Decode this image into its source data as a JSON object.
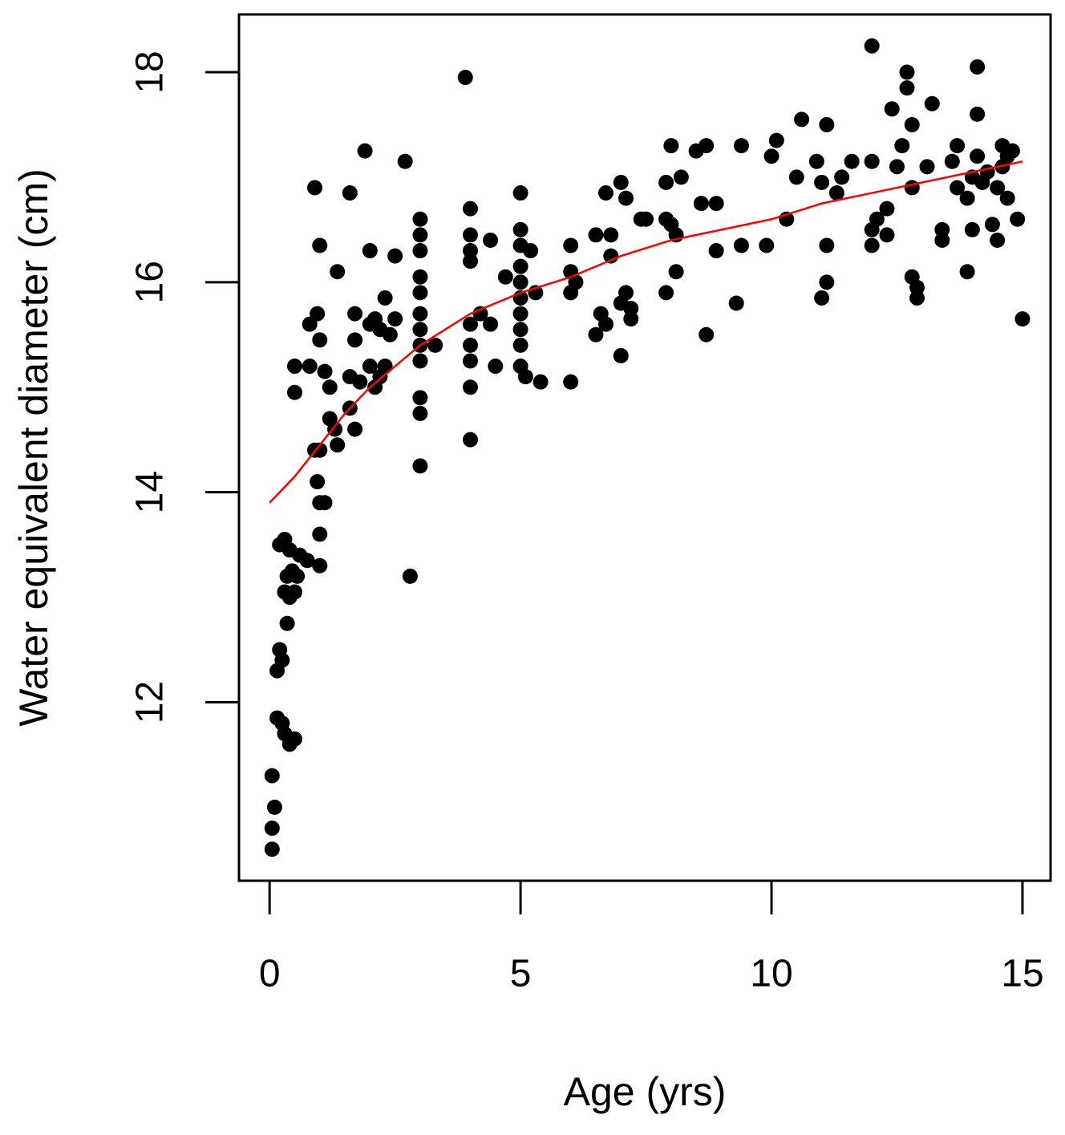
{
  "chart_data": {
    "type": "scatter",
    "x_label": "Age (yrs)",
    "y_label": "Water equivalent diameter (cm)",
    "xlim": [
      -0.61,
      15.56
    ],
    "ylim": [
      10.3,
      18.55
    ],
    "xticks": [
      0,
      5,
      10,
      15
    ],
    "yticks": [
      12,
      14,
      16,
      18
    ],
    "series": [
      {
        "mode": "markers",
        "color": "#000000",
        "x": [
          0.05,
          0.05,
          0.1,
          0.05,
          0.15,
          0.25,
          0.3,
          0.4,
          0.5,
          0.15,
          0.2,
          0.25,
          0.35,
          0.3,
          0.4,
          0.5,
          0.35,
          0.45,
          0.55,
          0.2,
          0.3,
          0.4,
          0.6,
          0.75,
          0.9,
          1.0,
          0.95,
          1.0,
          1.1,
          1.0,
          1.0,
          0.8,
          0.95,
          1.0,
          0.9,
          1.0,
          1.1,
          1.2,
          1.2,
          1.3,
          1.35,
          1.35,
          0.8,
          0.5,
          0.5,
          1.6,
          1.9,
          1.7,
          1.7,
          1.6,
          1.6,
          1.7,
          1.8,
          2.0,
          2.0,
          2.0,
          2.1,
          2.2,
          2.3,
          2.3,
          2.4,
          2.5,
          2.5,
          2.7,
          2.8,
          2.1,
          2.2,
          3,
          3,
          3,
          3,
          3,
          3,
          3,
          3,
          3,
          3,
          3,
          3,
          3.3,
          3.9,
          4,
          4,
          4,
          4,
          4,
          4,
          4,
          4,
          4,
          4.2,
          4.4,
          4.4,
          4.5,
          4.7,
          5,
          5,
          5,
          5,
          5,
          5,
          5,
          5,
          5,
          5,
          5.1,
          5.2,
          5.3,
          5.4,
          6,
          6,
          6,
          6,
          6.1,
          6.5,
          6.6,
          6.5,
          6.7,
          6.8,
          6.7,
          6.8,
          7,
          7,
          7,
          7.1,
          7.1,
          7.2,
          7.2,
          7.4,
          7.5,
          7.9,
          8,
          7.9,
          8,
          8.1,
          7.9,
          8.1,
          8.2,
          8.5,
          8.7,
          8.6,
          8.7,
          8.9,
          8.9,
          9.3,
          9.4,
          9.4,
          9.9,
          10,
          10.1,
          10.3,
          10.5,
          10.6,
          10.9,
          11,
          11,
          11.1,
          11.1,
          11.1,
          11.3,
          11.4,
          11.6,
          12,
          12,
          12,
          12,
          12.1,
          12.3,
          12.3,
          12.4,
          12.5,
          12.6,
          12.7,
          12.7,
          12.8,
          12.8,
          12.8,
          12.9,
          12.9,
          13.1,
          13.2,
          13.4,
          13.4,
          13.6,
          13.7,
          13.7,
          13.9,
          13.9,
          14,
          14,
          14.1,
          14.1,
          14.1,
          14.2,
          14.3,
          14.4,
          14.5,
          14.5,
          14.6,
          14.6,
          14.7,
          14.7,
          14.8,
          14.9,
          15
        ],
        "values": [
          10.6,
          10.8,
          11.0,
          11.3,
          11.85,
          11.8,
          11.7,
          11.6,
          11.65,
          12.3,
          12.5,
          12.4,
          12.75,
          13.05,
          13.0,
          13.05,
          13.2,
          13.25,
          13.2,
          13.5,
          13.55,
          13.45,
          13.4,
          13.35,
          14.4,
          14.4,
          14.1,
          13.9,
          13.9,
          13.6,
          13.3,
          15.2,
          15.7,
          16.35,
          16.9,
          15.45,
          15.15,
          15.0,
          14.7,
          14.6,
          14.45,
          16.1,
          15.6,
          15.2,
          14.95,
          16.85,
          17.25,
          15.7,
          15.45,
          15.1,
          14.8,
          14.6,
          15.05,
          15.6,
          15.2,
          16.3,
          15.65,
          15.55,
          15.85,
          15.2,
          15.5,
          15.65,
          16.25,
          17.15,
          13.2,
          15.0,
          15.1,
          16.6,
          16.45,
          16.3,
          16.05,
          15.9,
          15.7,
          15.55,
          15.4,
          15.25,
          14.9,
          14.75,
          14.25,
          15.4,
          17.95,
          16.7,
          16.45,
          16.3,
          16.2,
          15.6,
          15.4,
          15.25,
          15.0,
          14.5,
          15.7,
          16.4,
          15.6,
          15.2,
          16.05,
          16.85,
          16.5,
          16.35,
          16.15,
          16.0,
          15.85,
          15.7,
          15.55,
          15.4,
          15.2,
          15.1,
          16.3,
          15.9,
          15.05,
          16.35,
          16.1,
          15.9,
          15.05,
          16.0,
          16.45,
          15.7,
          15.5,
          15.6,
          16.45,
          16.85,
          16.25,
          16.95,
          15.8,
          15.3,
          16.8,
          15.9,
          15.75,
          15.65,
          16.6,
          16.6,
          16.95,
          17.3,
          16.6,
          16.55,
          16.45,
          15.9,
          16.1,
          17.0,
          17.25,
          17.3,
          16.75,
          15.5,
          16.3,
          16.75,
          15.8,
          17.3,
          16.35,
          16.35,
          17.2,
          17.35,
          16.6,
          17.0,
          17.55,
          17.15,
          16.95,
          15.85,
          16.0,
          16.35,
          17.5,
          16.85,
          17.0,
          17.15,
          18.25,
          17.15,
          16.5,
          16.35,
          16.6,
          16.7,
          16.45,
          17.65,
          17.1,
          17.3,
          18.0,
          17.85,
          17.5,
          16.9,
          16.05,
          15.95,
          15.85,
          17.1,
          17.7,
          16.5,
          16.4,
          17.15,
          17.3,
          16.9,
          16.1,
          16.8,
          16.5,
          17.0,
          17.6,
          18.05,
          17.2,
          16.95,
          17.05,
          16.55,
          16.9,
          16.4,
          17.3,
          17.1,
          17.2,
          16.8,
          17.25,
          16.6,
          15.65
        ]
      },
      {
        "mode": "lines",
        "color": "#ff0000",
        "x": [
          0,
          0.5,
          1,
          1.5,
          2,
          2.5,
          3,
          3.5,
          4,
          4.5,
          5,
          6,
          7,
          8,
          9,
          10,
          11,
          12,
          13,
          14,
          15
        ],
        "values": [
          13.9,
          14.15,
          14.45,
          14.75,
          15.0,
          15.2,
          15.4,
          15.55,
          15.7,
          15.8,
          15.9,
          16.05,
          16.25,
          16.4,
          16.5,
          16.6,
          16.75,
          16.85,
          16.95,
          17.05,
          17.15
        ]
      }
    ]
  }
}
